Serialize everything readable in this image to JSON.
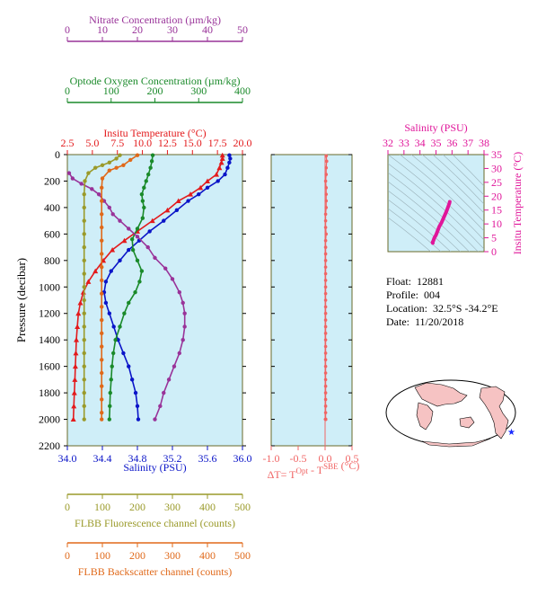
{
  "meta": {
    "float_label": "Float:",
    "float": "12881",
    "profile_label": "Profile:",
    "profile": "004",
    "location_label": "Location:",
    "location": "32.5°S  -34.2°E",
    "date_label": "Date:",
    "date": "11/20/2018"
  },
  "colors": {
    "nitrate": "#993399",
    "oxygen": "#1a8a2a",
    "temperature": "#e31a1c",
    "salinity": "#0a14c8",
    "fluorescence": "#9a9a2a",
    "backscatter": "#e0691a",
    "dt": "#f06464",
    "ts": "#e0169a",
    "panel_bg": "#cfeef8",
    "frame": "#7a7a2a"
  },
  "chart_data": [
    {
      "type": "line",
      "panel": "main-profile",
      "ylabel": "Pressure (decibar)",
      "yticks": [
        "0",
        "200",
        "400",
        "600",
        "800",
        "1000",
        "1200",
        "1400",
        "1600",
        "1800",
        "2000",
        "2200"
      ],
      "ylim": [
        0,
        2200
      ],
      "axes": {
        "nitrate": {
          "label": "Nitrate Concentration (µm/kg)",
          "ticks": [
            "0",
            "10",
            "20",
            "30",
            "40",
            "50"
          ],
          "range": [
            0,
            50
          ],
          "position": "top"
        },
        "oxygen": {
          "label": "Optode Oxygen Concentration (µm/kg)",
          "ticks": [
            "0",
            "100",
            "200",
            "300",
            "400"
          ],
          "range": [
            0,
            400
          ],
          "position": "top"
        },
        "temperature": {
          "label": "Insitu Temperature (°C)",
          "ticks": [
            "2.5",
            "5.0",
            "7.5",
            "10.0",
            "12.5",
            "15.0",
            "17.5",
            "20.0"
          ],
          "range": [
            2.5,
            20.0
          ],
          "position": "top"
        },
        "salinity": {
          "label": "Salinity (PSU)",
          "ticks": [
            "34.0",
            "34.4",
            "34.8",
            "35.2",
            "35.6",
            "36.0"
          ],
          "range": [
            34.0,
            36.0
          ],
          "position": "bottom"
        },
        "fluorescence": {
          "label": "FLBB Fluorescence channel (counts)",
          "ticks": [
            "0",
            "100",
            "200",
            "300",
            "400",
            "500"
          ],
          "range": [
            0,
            500
          ],
          "position": "bottom"
        },
        "backscatter": {
          "label": "FLBB Backscatter channel (counts)",
          "ticks": [
            "0",
            "100",
            "200",
            "300",
            "400",
            "500"
          ],
          "range": [
            0,
            500
          ],
          "position": "bottom"
        }
      },
      "series": [
        {
          "name": "Insitu Temperature",
          "axis": "temperature",
          "marker": "triangle",
          "points": [
            [
              18.0,
              5
            ],
            [
              18.0,
              30
            ],
            [
              17.9,
              60
            ],
            [
              17.7,
              100
            ],
            [
              17.4,
              150
            ],
            [
              16.5,
              200
            ],
            [
              15.8,
              250
            ],
            [
              14.8,
              300
            ],
            [
              13.6,
              350
            ],
            [
              12.5,
              420
            ],
            [
              11.0,
              500
            ],
            [
              9.5,
              580
            ],
            [
              8.2,
              650
            ],
            [
              7.0,
              720
            ],
            [
              6.1,
              800
            ],
            [
              5.3,
              880
            ],
            [
              4.6,
              960
            ],
            [
              4.1,
              1040
            ],
            [
              3.8,
              1120
            ],
            [
              3.6,
              1200
            ],
            [
              3.5,
              1300
            ],
            [
              3.4,
              1400
            ],
            [
              3.35,
              1500
            ],
            [
              3.3,
              1600
            ],
            [
              3.25,
              1700
            ],
            [
              3.2,
              1800
            ],
            [
              3.15,
              1900
            ],
            [
              3.1,
              2000
            ]
          ]
        },
        {
          "name": "Salinity",
          "axis": "salinity",
          "marker": "circle",
          "points": [
            [
              35.85,
              5
            ],
            [
              35.86,
              30
            ],
            [
              35.85,
              60
            ],
            [
              35.83,
              100
            ],
            [
              35.8,
              150
            ],
            [
              35.72,
              200
            ],
            [
              35.6,
              250
            ],
            [
              35.5,
              300
            ],
            [
              35.38,
              350
            ],
            [
              35.25,
              420
            ],
            [
              35.1,
              500
            ],
            [
              34.94,
              580
            ],
            [
              34.82,
              650
            ],
            [
              34.7,
              720
            ],
            [
              34.6,
              800
            ],
            [
              34.5,
              880
            ],
            [
              34.44,
              960
            ],
            [
              34.42,
              1040
            ],
            [
              34.44,
              1120
            ],
            [
              34.48,
              1200
            ],
            [
              34.53,
              1300
            ],
            [
              34.58,
              1400
            ],
            [
              34.64,
              1500
            ],
            [
              34.7,
              1600
            ],
            [
              34.74,
              1700
            ],
            [
              34.78,
              1800
            ],
            [
              34.8,
              1900
            ],
            [
              34.81,
              2000
            ]
          ]
        },
        {
          "name": "Optode Oxygen",
          "axis": "oxygen",
          "marker": "circle",
          "points": [
            [
              195,
              5
            ],
            [
              193,
              50
            ],
            [
              190,
              100
            ],
            [
              185,
              150
            ],
            [
              180,
              200
            ],
            [
              175,
              250
            ],
            [
              170,
              300
            ],
            [
              172,
              350
            ],
            [
              175,
              400
            ],
            [
              172,
              480
            ],
            [
              160,
              560
            ],
            [
              148,
              640
            ],
            [
              150,
              720
            ],
            [
              160,
              800
            ],
            [
              170,
              880
            ],
            [
              165,
              960
            ],
            [
              155,
              1040
            ],
            [
              140,
              1120
            ],
            [
              130,
              1200
            ],
            [
              120,
              1300
            ],
            [
              110,
              1400
            ],
            [
              105,
              1500
            ],
            [
              102,
              1600
            ],
            [
              100,
              1700
            ],
            [
              98,
              1800
            ],
            [
              97,
              1900
            ],
            [
              96,
              2000
            ]
          ]
        },
        {
          "name": "Nitrate",
          "axis": "nitrate",
          "marker": "circle",
          "points": [
            [
              0.5,
              140
            ],
            [
              1.5,
              180
            ],
            [
              4,
              220
            ],
            [
              7,
              260
            ],
            [
              9,
              300
            ],
            [
              10.5,
              350
            ],
            [
              12,
              400
            ],
            [
              13,
              450
            ],
            [
              15,
              500
            ],
            [
              17.5,
              560
            ],
            [
              20,
              620
            ],
            [
              23,
              700
            ],
            [
              25,
              780
            ],
            [
              28,
              860
            ],
            [
              30,
              940
            ],
            [
              32,
              1040
            ],
            [
              33,
              1120
            ],
            [
              33.5,
              1200
            ],
            [
              33.5,
              1300
            ],
            [
              33,
              1400
            ],
            [
              32,
              1500
            ],
            [
              30.5,
              1600
            ],
            [
              29,
              1700
            ],
            [
              27.5,
              1800
            ],
            [
              26.5,
              1900
            ],
            [
              25,
              2000
            ]
          ]
        },
        {
          "name": "FLBB Fluorescence",
          "axis": "fluorescence",
          "marker": "circle",
          "points": [
            [
              150,
              5
            ],
            [
              140,
              30
            ],
            [
              120,
              60
            ],
            [
              100,
              80
            ],
            [
              80,
              100
            ],
            [
              60,
              140
            ],
            [
              50,
              200
            ],
            [
              48,
              300
            ],
            [
              48,
              400
            ],
            [
              48,
              500
            ],
            [
              48,
              600
            ],
            [
              48,
              700
            ],
            [
              48,
              800
            ],
            [
              48,
              900
            ],
            [
              48,
              1000
            ],
            [
              48,
              1100
            ],
            [
              48,
              1200
            ],
            [
              48,
              1300
            ],
            [
              48,
              1400
            ],
            [
              48,
              1500
            ],
            [
              48,
              1600
            ],
            [
              48,
              1700
            ],
            [
              48,
              1800
            ],
            [
              48,
              1900
            ],
            [
              48,
              2000
            ]
          ]
        },
        {
          "name": "FLBB Backscatter",
          "axis": "backscatter",
          "marker": "circle",
          "points": [
            [
              200,
              5
            ],
            [
              180,
              40
            ],
            [
              160,
              80
            ],
            [
              140,
              100
            ],
            [
              120,
              120
            ],
            [
              100,
              180
            ],
            [
              98,
              250
            ],
            [
              98,
              350
            ],
            [
              98,
              450
            ],
            [
              98,
              550
            ],
            [
              98,
              650
            ],
            [
              98,
              750
            ],
            [
              98,
              850
            ],
            [
              98,
              950
            ],
            [
              98,
              1050
            ],
            [
              98,
              1150
            ],
            [
              98,
              1250
            ],
            [
              98,
              1350
            ],
            [
              98,
              1450
            ],
            [
              98,
              1550
            ],
            [
              98,
              1650
            ],
            [
              98,
              1750
            ],
            [
              98,
              1850
            ],
            [
              98,
              1950
            ],
            [
              98,
              2000
            ]
          ]
        }
      ]
    },
    {
      "type": "scatter",
      "panel": "delta-t",
      "xlabel": "ΔT= T",
      "xlabel_sup1": "Opt",
      "xlabel_mid": " - T",
      "xlabel_sup2": "SBE",
      "xlabel_unit": " (°C)",
      "xticks": [
        "-1.0",
        "-0.5",
        "0.0",
        "0.5"
      ],
      "xlim": [
        -1.0,
        0.5
      ],
      "ylim": [
        0,
        2200
      ],
      "x": [
        0.02,
        0.03,
        0.02,
        0.02,
        0.01,
        0.02,
        0.02,
        0.02,
        0.02,
        0.01,
        0.01,
        0.01,
        0.02,
        0.01,
        0.01,
        0.01,
        0.01,
        0.01,
        0.01,
        0.01,
        0.01,
        0.01,
        0.01,
        0.01,
        0.01,
        0.01,
        0.01,
        0.01,
        0.01,
        0.01,
        0.01,
        0.01,
        0.01,
        0.01,
        0.01,
        0.01,
        0.01,
        0.01,
        0.01,
        0.01,
        0.01,
        0.01,
        0.01,
        0.01,
        0.01,
        0.01,
        0.01,
        0.01,
        0.01,
        0.01,
        0.01,
        0.01
      ],
      "y": [
        10,
        50,
        100,
        150,
        200,
        250,
        300,
        350,
        400,
        450,
        500,
        550,
        600,
        650,
        700,
        750,
        800,
        850,
        900,
        950,
        1000,
        1050,
        1100,
        1150,
        1200,
        1250,
        1300,
        1350,
        1400,
        1450,
        1500,
        1550,
        1600,
        1650,
        1700,
        1750,
        1800,
        1850,
        1900,
        1950,
        2000,
        2000,
        2000,
        2000,
        2000,
        2000,
        2000,
        2000,
        2000,
        2000,
        2000,
        2000
      ]
    },
    {
      "type": "line",
      "panel": "ts-diagram",
      "xlabel": "Salinity (PSU)",
      "ylabel": "Insitu Temperature (°C)",
      "xticks": [
        "32",
        "33",
        "34",
        "35",
        "36",
        "37",
        "38"
      ],
      "yticks": [
        "0",
        "5",
        "10",
        "15",
        "20",
        "25",
        "30",
        "35"
      ],
      "xlim": [
        32,
        38
      ],
      "ylim": [
        0,
        35
      ],
      "x": [
        34.8,
        34.78,
        34.8,
        34.84,
        34.9,
        35.0,
        35.1,
        35.2,
        35.35,
        35.5,
        35.65,
        35.78,
        35.84,
        35.86
      ],
      "y": [
        3.1,
        3.3,
        3.5,
        4.0,
        5.0,
        6.0,
        7.5,
        9.0,
        10.5,
        12.5,
        14.5,
        16.5,
        17.5,
        18.0
      ]
    }
  ]
}
